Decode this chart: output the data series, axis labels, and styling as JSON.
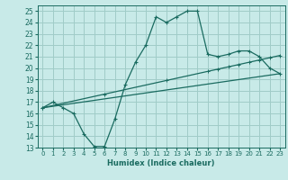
{
  "xlabel": "Humidex (Indice chaleur)",
  "bg_color": "#c8eae8",
  "grid_color": "#a0ccc8",
  "line_color": "#1a6b60",
  "xlim": [
    -0.5,
    23.5
  ],
  "ylim": [
    13,
    25.5
  ],
  "yticks": [
    13,
    14,
    15,
    16,
    17,
    18,
    19,
    20,
    21,
    22,
    23,
    24,
    25
  ],
  "xticks": [
    0,
    1,
    2,
    3,
    4,
    5,
    6,
    7,
    8,
    9,
    10,
    11,
    12,
    13,
    14,
    15,
    16,
    17,
    18,
    19,
    20,
    21,
    22,
    23
  ],
  "line1_x": [
    0,
    1,
    2,
    3,
    4,
    5,
    6,
    7,
    8,
    9,
    10,
    11,
    12,
    13,
    14,
    15,
    16,
    17,
    18,
    19,
    20,
    21,
    22,
    23
  ],
  "line1_y": [
    16.5,
    17.0,
    16.5,
    16.0,
    14.2,
    13.1,
    13.1,
    15.5,
    18.5,
    20.5,
    22.0,
    24.5,
    24.0,
    24.5,
    25.0,
    25.0,
    21.2,
    21.0,
    21.2,
    21.5,
    21.5,
    21.0,
    20.0,
    19.5
  ],
  "line2_x": [
    0,
    1,
    2,
    3,
    4,
    5,
    6,
    7,
    8,
    9,
    10,
    11,
    12,
    13,
    14,
    15,
    16,
    17,
    18,
    19,
    20,
    21,
    22,
    23
  ],
  "line2_y": [
    16.5,
    16.7,
    16.9,
    17.1,
    17.3,
    17.5,
    17.7,
    17.9,
    18.1,
    18.3,
    18.5,
    18.7,
    18.9,
    19.1,
    19.3,
    19.5,
    19.7,
    19.9,
    20.1,
    20.3,
    20.5,
    20.7,
    20.9,
    21.1
  ],
  "line3_x": [
    0,
    23
  ],
  "line3_y": [
    16.5,
    19.5
  ]
}
